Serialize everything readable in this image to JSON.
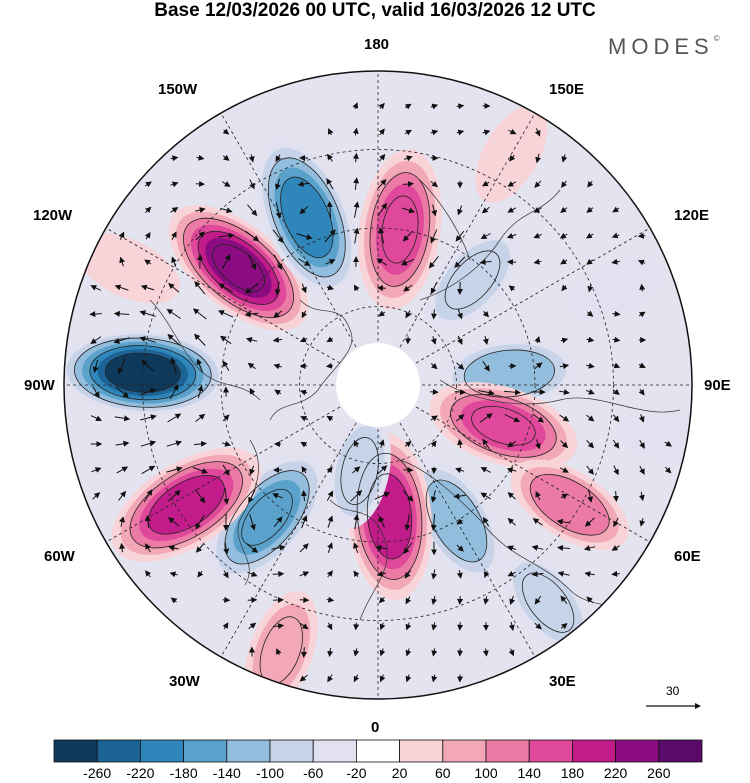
{
  "title": "Base 12/03/2026 00 UTC, valid 16/03/2026 12 UTC",
  "brand": "MODES",
  "brand_mark": "©",
  "longitude_labels": {
    "top": "180",
    "bottom": "0",
    "left": "90W",
    "right": "90E",
    "upper_left_1": "150W",
    "upper_left_2": "120W",
    "upper_right_1": "150E",
    "upper_right_2": "120E",
    "lower_left_1": "60W",
    "lower_left_2": "30W",
    "lower_right_1": "60E",
    "lower_right_2": "30E"
  },
  "vector_scale": "30",
  "colorbar": {
    "ticks": [
      "-260",
      "-220",
      "-180",
      "-140",
      "-100",
      "-60",
      "-20",
      "20",
      "60",
      "100",
      "140",
      "180",
      "220",
      "260"
    ],
    "colors": [
      "#0f3a5c",
      "#1d6396",
      "#2f86bb",
      "#5aa2cb",
      "#93bddc",
      "#c6d3e9",
      "#e2e1f0",
      "#ffffff",
      "#f8d3d7",
      "#f2a8b7",
      "#eb7aa5",
      "#e0489c",
      "#c21b8a",
      "#8b0c80",
      "#5a0a6b"
    ]
  },
  "anomaly_centers": [
    {
      "lon": -130,
      "r": 0.58,
      "v": 250
    },
    {
      "lon": -157,
      "r": 0.58,
      "v": -215
    },
    {
      "lon": 172,
      "r": 0.5,
      "v": 180
    },
    {
      "lon": 138,
      "r": 0.45,
      "v": -90
    },
    {
      "lon": 95,
      "r": 0.42,
      "v": -120
    },
    {
      "lon": 72,
      "r": 0.42,
      "v": 160
    },
    {
      "lon": 30,
      "r": 0.5,
      "v": -120
    },
    {
      "lon": 38,
      "r": 0.88,
      "v": -80
    },
    {
      "lon": 58,
      "r": 0.72,
      "v": 110
    },
    {
      "lon": 5,
      "r": 0.42,
      "v": 200
    },
    {
      "lon": -12,
      "r": 0.28,
      "v": -70
    },
    {
      "lon": -40,
      "r": 0.55,
      "v": -170
    },
    {
      "lon": -58,
      "r": 0.72,
      "v": 210
    },
    {
      "lon": -93,
      "r": 0.75,
      "v": -265
    },
    {
      "lon": -115,
      "r": 0.88,
      "v": 60
    },
    {
      "lon": 112,
      "r": 0.82,
      "v": -40
    },
    {
      "lon": 150,
      "r": 0.85,
      "v": 50
    },
    {
      "lon": -20,
      "r": 0.9,
      "v": 90
    },
    {
      "lon": 80,
      "r": 0.93,
      "v": -30
    }
  ]
}
